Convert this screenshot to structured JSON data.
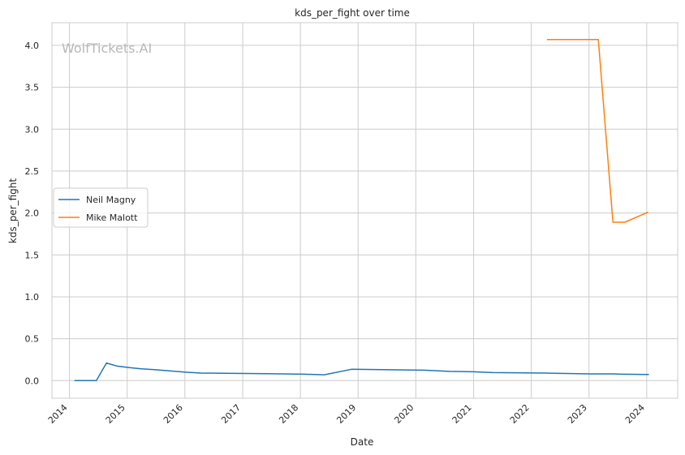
{
  "chart_data": {
    "type": "line",
    "title": "kds_per_fight over time",
    "xlabel": "Date",
    "ylabel": "kds_per_fight",
    "watermark": "WolfTickets.AI",
    "xlim": [
      "2013-09-12",
      "2024-07-15"
    ],
    "ylim": [
      -0.21,
      4.27
    ],
    "x_ticks": [
      "2014-01-01",
      "2015-01-01",
      "2016-01-01",
      "2017-01-01",
      "2018-01-01",
      "2019-01-01",
      "2020-01-01",
      "2021-01-01",
      "2022-01-01",
      "2023-01-01",
      "2024-01-01"
    ],
    "x_tick_labels": [
      "2014",
      "2015",
      "2016",
      "2017",
      "2018",
      "2019",
      "2020",
      "2021",
      "2022",
      "2023",
      "2024"
    ],
    "y_ticks": [
      0.0,
      0.5,
      1.0,
      1.5,
      2.0,
      2.5,
      3.0,
      3.5,
      4.0
    ],
    "y_tick_labels": [
      "0.0",
      "0.5",
      "1.0",
      "1.5",
      "2.0",
      "2.5",
      "3.0",
      "3.5",
      "4.0"
    ],
    "grid": true,
    "legend": {
      "placement": "center-left"
    },
    "series": [
      {
        "name": "Neil Magny",
        "color": "#1f77b4",
        "points": [
          [
            "2014-02-01",
            0.0
          ],
          [
            "2014-06-20",
            0.0
          ],
          [
            "2014-08-23",
            0.21
          ],
          [
            "2014-10-25",
            0.175
          ],
          [
            "2015-01-15",
            0.155
          ],
          [
            "2015-04-01",
            0.14
          ],
          [
            "2015-07-01",
            0.13
          ],
          [
            "2015-09-01",
            0.12
          ],
          [
            "2016-01-15",
            0.1
          ],
          [
            "2016-04-15",
            0.09
          ],
          [
            "2017-06-01",
            0.082
          ],
          [
            "2018-02-01",
            0.076
          ],
          [
            "2018-06-01",
            0.07
          ],
          [
            "2018-11-20",
            0.135
          ],
          [
            "2020-02-20",
            0.125
          ],
          [
            "2020-08-01",
            0.11
          ],
          [
            "2021-01-01",
            0.105
          ],
          [
            "2021-05-01",
            0.096
          ],
          [
            "2022-04-01",
            0.09
          ],
          [
            "2022-07-01",
            0.086
          ],
          [
            "2023-01-15",
            0.08
          ],
          [
            "2023-06-01",
            0.08
          ],
          [
            "2023-08-01",
            0.076
          ],
          [
            "2024-01-15",
            0.073
          ]
        ]
      },
      {
        "name": "Mike Malott",
        "color": "#ff7f0e",
        "points": [
          [
            "2022-04-10",
            4.07
          ],
          [
            "2023-03-01",
            4.07
          ],
          [
            "2023-06-01",
            1.89
          ],
          [
            "2023-08-15",
            1.89
          ],
          [
            "2024-01-10",
            2.01
          ]
        ]
      }
    ]
  }
}
